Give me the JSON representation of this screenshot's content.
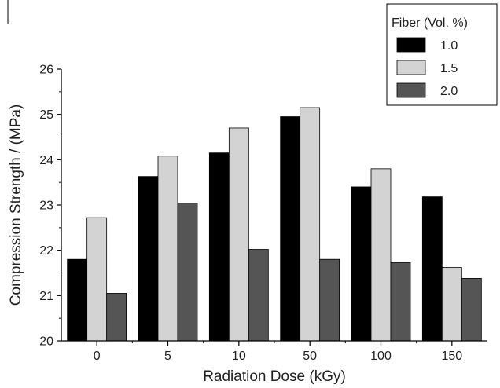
{
  "chart_data": {
    "type": "bar",
    "title": "",
    "xlabel": "Radiation Dose (kGy)",
    "ylabel": "Compression Strength / (MPa)",
    "categories": [
      "0",
      "5",
      "10",
      "50",
      "100",
      "150"
    ],
    "ylim": [
      20,
      26
    ],
    "yticks": [
      "20",
      "21",
      "22",
      "23",
      "24",
      "25",
      "26"
    ],
    "grid": false,
    "legend": {
      "title": "Fiber (Vol. %)",
      "placement": "top-right"
    },
    "series": [
      {
        "name": "1.0",
        "color": "#000000",
        "values": [
          21.8,
          23.63,
          24.15,
          24.95,
          23.4,
          23.18
        ]
      },
      {
        "name": "1.5",
        "color": "#d3d3d3",
        "values": [
          22.72,
          24.08,
          24.7,
          25.15,
          23.8,
          21.62
        ]
      },
      {
        "name": "2.0",
        "color": "#555555",
        "values": [
          21.05,
          23.04,
          22.02,
          21.8,
          21.73,
          21.38
        ]
      }
    ]
  }
}
